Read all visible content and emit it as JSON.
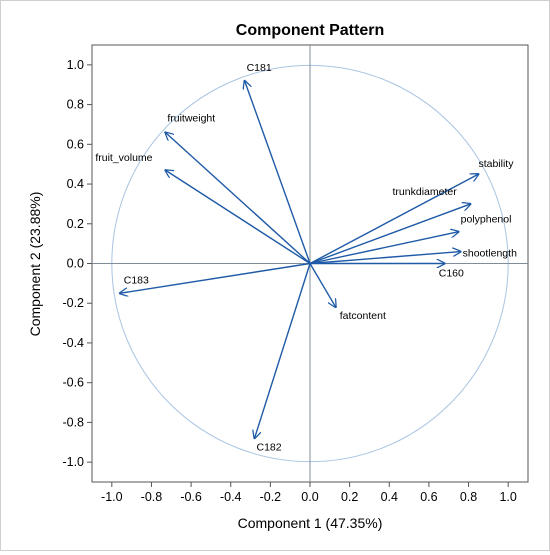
{
  "chart_data": {
    "type": "biplot",
    "title": "Component Pattern",
    "xlabel": "Component 1 (47.35%)",
    "ylabel": "Component 2 (23.88%)",
    "xlim": [
      -1.1,
      1.1
    ],
    "ylim": [
      -1.1,
      1.1
    ],
    "xticks": [
      "-1.0",
      "-0.8",
      "-0.6",
      "-0.4",
      "-0.2",
      "0.0",
      "0.2",
      "0.4",
      "0.6",
      "0.8",
      "1.0"
    ],
    "yticks": [
      "1.0",
      "0.8",
      "0.6",
      "0.4",
      "0.2",
      "0.0",
      "-0.2",
      "-0.4",
      "-0.6",
      "-0.8",
      "-1.0"
    ],
    "unit_circle": true,
    "grid": false,
    "colors": {
      "vector": "#1f5aa6",
      "circle": "#a9c4e2",
      "reference_lines": "#7f8c99"
    },
    "vectors": [
      {
        "name": "C181",
        "x": -0.33,
        "y": 0.92
      },
      {
        "name": "fruitweight",
        "x": -0.73,
        "y": 0.66
      },
      {
        "name": "fruit_volume",
        "x": -0.73,
        "y": 0.47
      },
      {
        "name": "C183",
        "x": -0.96,
        "y": -0.15
      },
      {
        "name": "C182",
        "x": -0.28,
        "y": -0.88
      },
      {
        "name": "fatcontent",
        "x": 0.13,
        "y": -0.22
      },
      {
        "name": "stability",
        "x": 0.85,
        "y": 0.45
      },
      {
        "name": "trunkdiameter",
        "x": 0.81,
        "y": 0.3
      },
      {
        "name": "polyphenol",
        "x": 0.75,
        "y": 0.16
      },
      {
        "name": "shootlength",
        "x": 0.76,
        "y": 0.06
      },
      {
        "name": "C160",
        "x": 0.68,
        "y": 0.0
      }
    ]
  }
}
